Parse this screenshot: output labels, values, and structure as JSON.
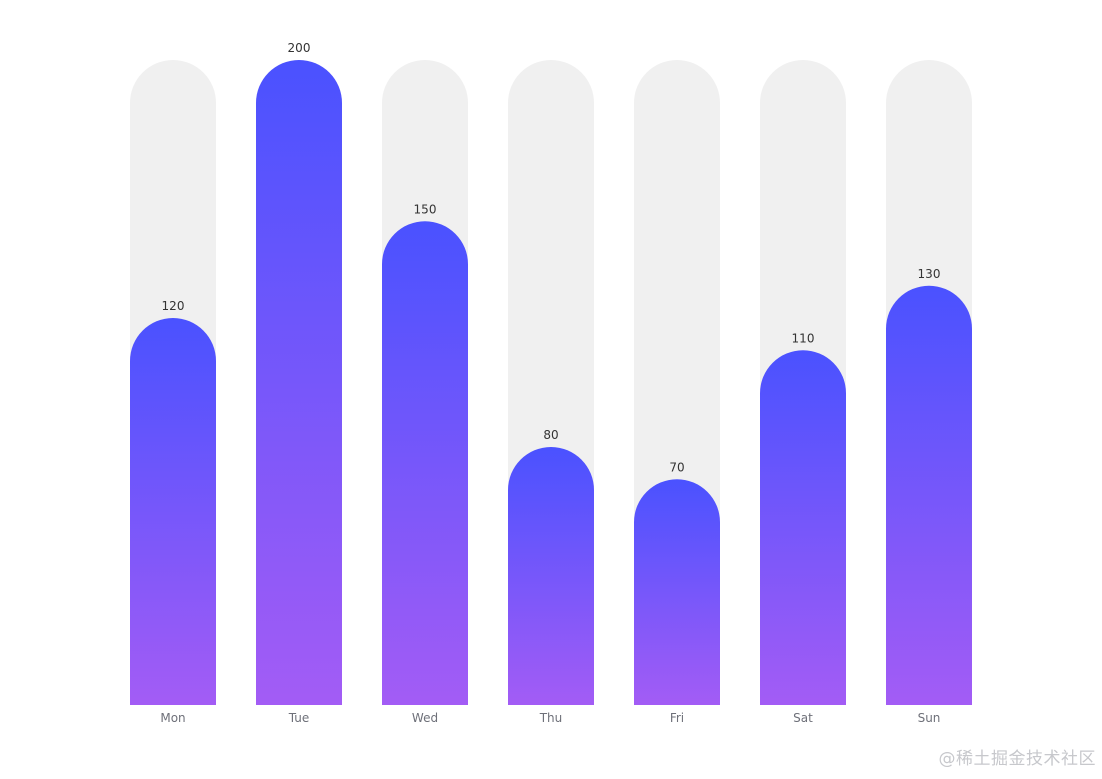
{
  "chart_data": {
    "type": "bar",
    "categories": [
      "Mon",
      "Tue",
      "Wed",
      "Thu",
      "Fri",
      "Sat",
      "Sun"
    ],
    "values": [
      120,
      200,
      150,
      80,
      70,
      110,
      130
    ],
    "ylim": [
      0,
      200
    ],
    "background_bar_value": 200,
    "show_data_labels": true,
    "grid": false,
    "legend": "none",
    "colors": {
      "bar_gradient_top": "#4a52ff",
      "bar_gradient_bottom": "#a35cf5",
      "background_bar": "#f0f0f0",
      "value_label": "#333333",
      "category_label": "#6e7079"
    }
  },
  "watermark": {
    "text": "@稀土掘金技术社区"
  }
}
